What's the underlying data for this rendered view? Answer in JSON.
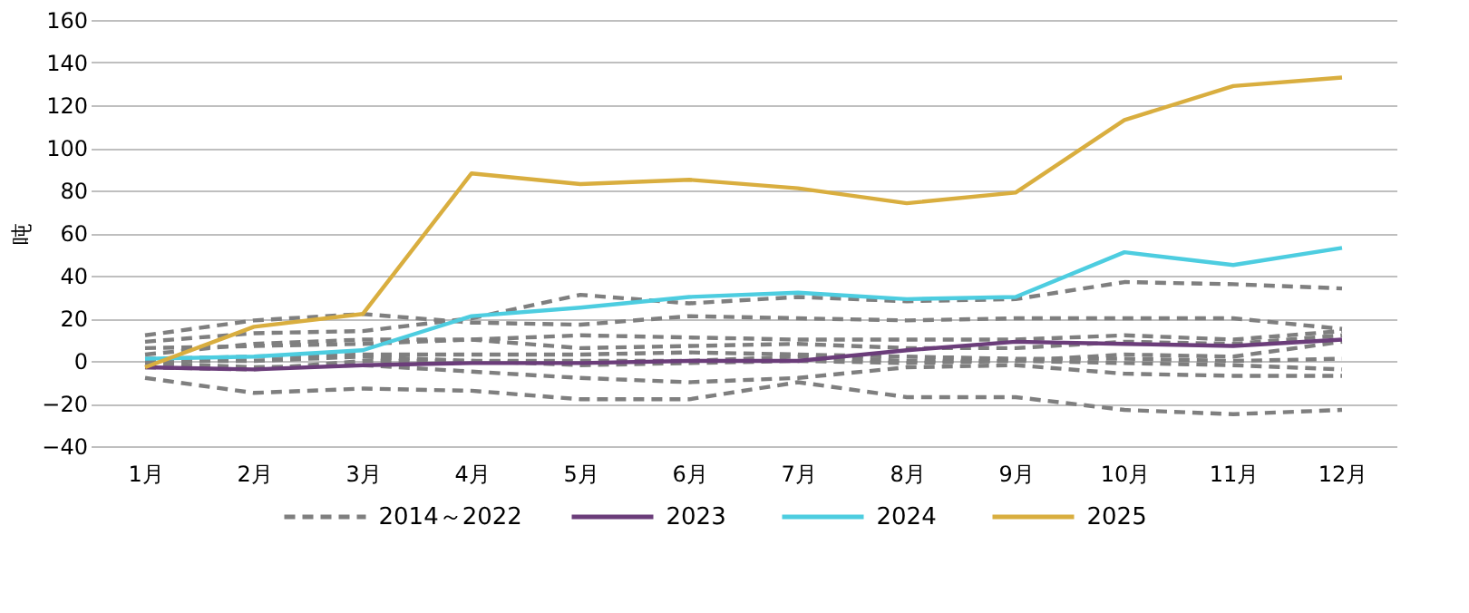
{
  "chart_data": {
    "type": "line",
    "ylabel": "吨",
    "categories": [
      "1月",
      "2月",
      "3月",
      "4月",
      "5月",
      "6月",
      "7月",
      "8月",
      "9月",
      "10月",
      "11月",
      "12月"
    ],
    "ylim": [
      -40,
      160
    ],
    "yticks": [
      -40,
      -20,
      0,
      20,
      40,
      60,
      80,
      100,
      120,
      140,
      160
    ],
    "grid": "y",
    "legend": "bottom",
    "marker": "none",
    "series": [
      {
        "name": "2014～2022",
        "color": "#7f7f7f",
        "line_style": "dashed",
        "values": [
          12,
          19,
          22,
          18,
          17,
          21,
          20,
          19,
          20,
          20,
          20,
          15
        ]
      },
      {
        "color": "#7f7f7f",
        "line_style": "dashed",
        "values": [
          9,
          13,
          14,
          20,
          31,
          27,
          30,
          28,
          29,
          37,
          36,
          34
        ]
      },
      {
        "color": "#7f7f7f",
        "line_style": "dashed",
        "values": [
          6,
          7,
          8,
          10,
          12,
          11,
          10,
          10,
          10,
          12,
          10,
          14
        ]
      },
      {
        "color": "#7f7f7f",
        "line_style": "dashed",
        "values": [
          3,
          8,
          10,
          10,
          6,
          7,
          8,
          6,
          6,
          9,
          8,
          12
        ]
      },
      {
        "color": "#7f7f7f",
        "line_style": "dashed",
        "values": [
          0,
          0,
          2,
          0,
          0,
          0,
          2,
          0,
          0,
          3,
          2,
          9
        ]
      },
      {
        "color": "#7f7f7f",
        "line_style": "dashed",
        "values": [
          -3,
          -4,
          0,
          0,
          -2,
          -1,
          0,
          -1,
          0,
          -1,
          -2,
          -4
        ]
      },
      {
        "color": "#7f7f7f",
        "line_style": "dashed",
        "values": [
          -1,
          -3,
          -2,
          -5,
          -8,
          -10,
          -8,
          -3,
          -2,
          -6,
          -7,
          -7
        ]
      },
      {
        "color": "#7f7f7f",
        "line_style": "dashed",
        "values": [
          -8,
          -15,
          -13,
          -14,
          -18,
          -18,
          -10,
          -17,
          -17,
          -23,
          -25,
          -23
        ]
      },
      {
        "color": "#7f7f7f",
        "line_style": "dashed",
        "values": [
          1,
          2,
          3,
          3,
          3,
          4,
          3,
          2,
          1,
          1,
          0,
          1
        ]
      },
      {
        "name": "2023",
        "color": "#6b3d7a",
        "line_style": "solid",
        "values": [
          -3,
          -4,
          -2,
          -1,
          -1,
          0,
          0,
          5,
          9,
          8,
          7,
          10
        ]
      },
      {
        "name": "2024",
        "color": "#4dcde0",
        "line_style": "solid",
        "values": [
          1,
          2,
          5,
          21,
          25,
          30,
          32,
          29,
          30,
          51,
          45,
          53
        ]
      },
      {
        "name": "2025",
        "color": "#d9ae3f",
        "line_style": "solid",
        "values": [
          -3,
          16,
          22,
          88,
          83,
          85,
          81,
          74,
          79,
          113,
          129,
          133
        ]
      }
    ]
  }
}
